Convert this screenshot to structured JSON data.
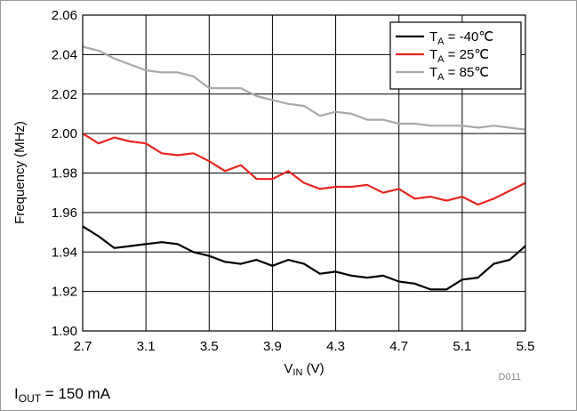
{
  "chart_data": {
    "type": "line",
    "xlabel_main": "V",
    "xlabel_sub": "IN",
    "xlabel_rest": " (V)",
    "ylabel": "Frequency (MHz)",
    "xlim": [
      2.7,
      5.5
    ],
    "ylim": [
      1.9,
      2.06
    ],
    "x_ticks": [
      "2.7",
      "3.1",
      "3.5",
      "3.9",
      "4.3",
      "4.7",
      "5.1",
      "5.5"
    ],
    "y_ticks": [
      "1.90",
      "1.92",
      "1.94",
      "1.96",
      "1.98",
      "2.00",
      "2.02",
      "2.04",
      "2.06"
    ],
    "grid": true,
    "legend_position": "top-right",
    "series": [
      {
        "name": "T",
        "name_sub": "A",
        "name_rest": " = -40℃",
        "color": "#000000",
        "x": [
          2.7,
          2.8,
          2.9,
          3.0,
          3.1,
          3.2,
          3.3,
          3.4,
          3.5,
          3.6,
          3.7,
          3.8,
          3.9,
          4.0,
          4.1,
          4.2,
          4.3,
          4.4,
          4.5,
          4.6,
          4.7,
          4.8,
          4.9,
          5.0,
          5.1,
          5.2,
          5.3,
          5.4,
          5.5
        ],
        "y": [
          1.953,
          1.948,
          1.942,
          1.943,
          1.944,
          1.945,
          1.944,
          1.94,
          1.938,
          1.935,
          1.934,
          1.936,
          1.933,
          1.936,
          1.934,
          1.929,
          1.93,
          1.928,
          1.927,
          1.928,
          1.925,
          1.924,
          1.921,
          1.921,
          1.926,
          1.927,
          1.934,
          1.936,
          1.943
        ]
      },
      {
        "name": "T",
        "name_sub": "A",
        "name_rest": " = 25℃",
        "color": "#e8251f",
        "x": [
          2.7,
          2.8,
          2.9,
          3.0,
          3.1,
          3.2,
          3.3,
          3.4,
          3.5,
          3.6,
          3.7,
          3.8,
          3.9,
          4.0,
          4.1,
          4.2,
          4.3,
          4.4,
          4.5,
          4.6,
          4.7,
          4.8,
          4.9,
          5.0,
          5.1,
          5.2,
          5.3,
          5.4,
          5.5
        ],
        "y": [
          2.0,
          1.995,
          1.998,
          1.996,
          1.995,
          1.99,
          1.989,
          1.99,
          1.986,
          1.981,
          1.984,
          1.977,
          1.977,
          1.981,
          1.975,
          1.972,
          1.973,
          1.973,
          1.974,
          1.97,
          1.972,
          1.967,
          1.968,
          1.966,
          1.968,
          1.964,
          1.967,
          1.971,
          1.975
        ]
      },
      {
        "name": "T",
        "name_sub": "A",
        "name_rest": " = 85℃",
        "color": "#a9a9a9",
        "x": [
          2.7,
          2.8,
          2.9,
          3.0,
          3.1,
          3.2,
          3.3,
          3.4,
          3.5,
          3.6,
          3.7,
          3.8,
          3.9,
          4.0,
          4.1,
          4.2,
          4.3,
          4.4,
          4.5,
          4.6,
          4.7,
          4.8,
          4.9,
          5.0,
          5.1,
          5.2,
          5.3,
          5.4,
          5.5
        ],
        "y": [
          2.044,
          2.042,
          2.038,
          2.035,
          2.032,
          2.031,
          2.031,
          2.029,
          2.023,
          2.023,
          2.023,
          2.019,
          2.017,
          2.015,
          2.014,
          2.009,
          2.011,
          2.01,
          2.007,
          2.007,
          2.005,
          2.005,
          2.004,
          2.004,
          2.004,
          2.003,
          2.004,
          2.003,
          2.002
        ]
      }
    ],
    "figure_id": "D011",
    "condition_main": "I",
    "condition_sub": "OUT",
    "condition_rest": " = 150 mA"
  }
}
